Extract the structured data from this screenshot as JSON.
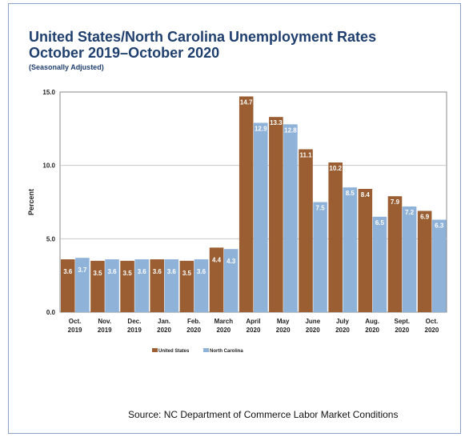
{
  "header": {
    "title_line1": "United States/North Carolina Unemployment Rates",
    "title_line2": "October 2019–October 2020",
    "subtitle": "(Seasonally Adjusted)"
  },
  "footer": {
    "source": "Source: NC Department of Commerce Labor Market Conditions"
  },
  "chart_data": {
    "type": "bar",
    "title": "United States/North Carolina Unemployment Rates October 2019–October 2020",
    "subtitle": "(Seasonally Adjusted)",
    "xlabel": "",
    "ylabel": "Percent",
    "ylim": [
      0,
      15
    ],
    "yticks": [
      "0.0",
      "5.0",
      "10.0",
      "15.0"
    ],
    "categories": [
      [
        "Oct.",
        "2019"
      ],
      [
        "Nov.",
        "2019"
      ],
      [
        "Dec.",
        "2019"
      ],
      [
        "Jan.",
        "2020"
      ],
      [
        "Feb.",
        "2020"
      ],
      [
        "March",
        "2020"
      ],
      [
        "April",
        "2020"
      ],
      [
        "May",
        "2020"
      ],
      [
        "June",
        "2020"
      ],
      [
        "July",
        "2020"
      ],
      [
        "Aug.",
        "2020"
      ],
      [
        "Sept.",
        "2020"
      ],
      [
        "Oct.",
        "2020"
      ]
    ],
    "series": [
      {
        "name": "United States",
        "color": "#9b5e32",
        "values": [
          3.6,
          3.5,
          3.5,
          3.6,
          3.5,
          4.4,
          14.7,
          13.3,
          11.1,
          10.2,
          8.4,
          7.9,
          6.9
        ]
      },
      {
        "name": "North Carolina",
        "color": "#8fb2d9",
        "values": [
          3.7,
          3.6,
          3.6,
          3.6,
          3.6,
          4.3,
          12.9,
          12.8,
          7.5,
          8.5,
          6.5,
          7.2,
          6.3
        ]
      }
    ],
    "grid": true,
    "legend": "bottom-center",
    "data_labels": true
  }
}
